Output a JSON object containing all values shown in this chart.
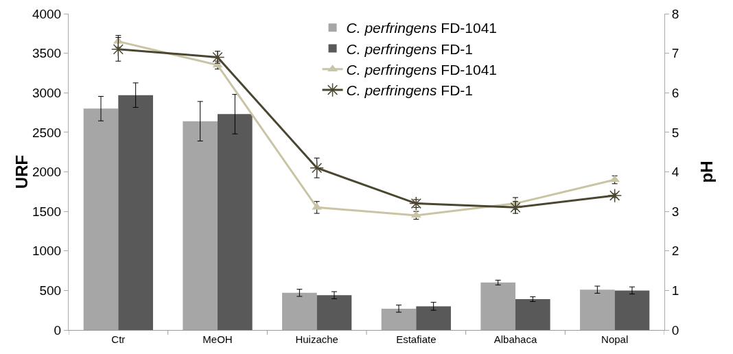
{
  "chart_data": {
    "type": "bar",
    "ylabel": "URF",
    "y2label": "pH",
    "categories": [
      "Ctr",
      "MeOH",
      "Huizache",
      "Estafiate",
      "Albahaca",
      "Nopal"
    ],
    "series": [
      {
        "name": "C. perfringens FD-1041",
        "color": "#a6a6a6",
        "values": [
          2800,
          2640,
          470,
          270,
          600,
          510
        ],
        "errors": [
          155,
          250,
          45,
          45,
          30,
          45
        ]
      },
      {
        "name": "C. perfringens FD-1",
        "color": "#595959",
        "values": [
          2970,
          2730,
          440,
          300,
          390,
          500
        ],
        "errors": [
          155,
          250,
          45,
          50,
          30,
          45
        ]
      },
      {
        "name": "C. perfringens FD-1041",
        "type": "line",
        "axis": "y2",
        "color": "#c9c4a4",
        "marker": "triangle",
        "values": [
          7.3,
          6.7,
          3.1,
          2.9,
          3.2,
          3.8
        ],
        "errors": [
          0.15,
          0.1,
          0.15,
          0.1,
          0.15,
          0.1
        ]
      },
      {
        "name": "C. perfringens FD-1",
        "type": "line",
        "axis": "y2",
        "color": "#4a4630",
        "marker": "cross",
        "values": [
          7.1,
          6.9,
          4.1,
          3.2,
          3.1,
          3.4
        ],
        "errors": [
          0.3,
          0.15,
          0.25,
          0.1,
          0.15,
          0.05
        ]
      }
    ],
    "ylim": [
      0,
      4000
    ],
    "yticks": [
      0,
      500,
      1000,
      1500,
      2000,
      2500,
      3000,
      3500,
      4000
    ],
    "y2lim": [
      0,
      8
    ],
    "y2ticks": [
      0,
      1,
      2,
      3,
      4,
      5,
      6,
      7,
      8
    ],
    "grid": false,
    "legend": "top"
  }
}
